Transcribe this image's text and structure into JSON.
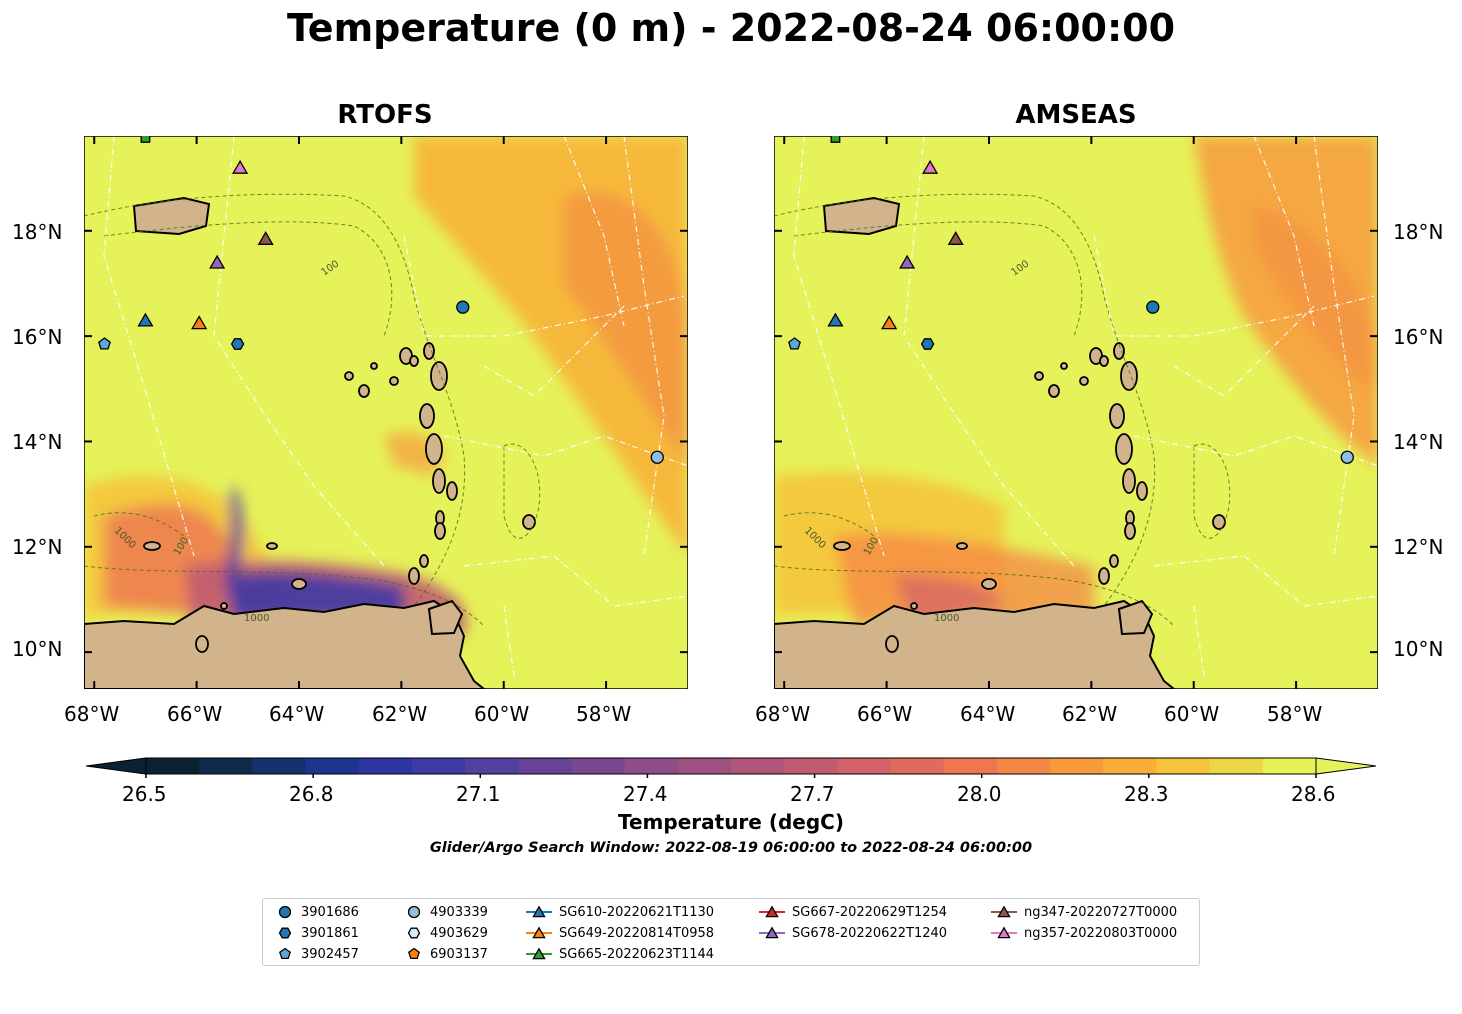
{
  "title": "Temperature (0 m) - 2022-08-24 06:00:00",
  "panels": [
    {
      "title": "RTOFS"
    },
    {
      "title": "AMSEAS"
    }
  ],
  "lon_ticks": [
    "68°W",
    "66°W",
    "64°W",
    "62°W",
    "60°W",
    "58°W"
  ],
  "lat_ticks": [
    "10°N",
    "12°N",
    "14°N",
    "16°N",
    "18°N"
  ],
  "map_extent": {
    "lon": [
      -68.2,
      -56.4
    ],
    "lat": [
      9.3,
      19.8
    ]
  },
  "colorbar": {
    "label": "Temperature (degC)",
    "ticks": [
      "26.5",
      "26.8",
      "27.1",
      "27.4",
      "27.7",
      "28.0",
      "28.3",
      "28.6"
    ],
    "range": [
      26.5,
      28.6
    ],
    "colors": [
      "#0b2233",
      "#0f2a4a",
      "#16306b",
      "#1f348c",
      "#2d36a0",
      "#3f3aa3",
      "#533f9e",
      "#664397",
      "#79488f",
      "#8c4d88",
      "#9e5181",
      "#b0567a",
      "#c15b72",
      "#d2616a",
      "#e06a5e",
      "#ec7752",
      "#f48746",
      "#f79a3c",
      "#f8ae37",
      "#f5c43c",
      "#ecd844",
      "#e6f25a"
    ]
  },
  "contour_labels": [
    "100",
    "1000",
    "100",
    "1000"
  ],
  "search_window": "Glider/Argo Search Window: 2022-08-19 06:00:00 to 2022-08-24 06:00:00",
  "legend": {
    "items": [
      {
        "label": "3901686",
        "marker": "circle",
        "color": "#1f77b4"
      },
      {
        "label": "3901861",
        "marker": "hexagon",
        "color": "#1f77b4"
      },
      {
        "label": "3902457",
        "marker": "pentagon",
        "color": "#5da5da"
      },
      {
        "label": "4903339",
        "marker": "circle",
        "color": "#8fbfe0"
      },
      {
        "label": "4903629",
        "marker": "hexagon",
        "color": "#d6ecf8"
      },
      {
        "label": "6903137",
        "marker": "pentagon",
        "color": "#ff7f0e"
      },
      {
        "label": "SG610-20220621T1130",
        "marker": "triangle-line",
        "color": "#1f77b4"
      },
      {
        "label": "SG649-20220814T0958",
        "marker": "triangle-line",
        "color": "#ff7f0e"
      },
      {
        "label": "SG665-20220623T1144",
        "marker": "triangle-line",
        "color": "#2ca02c"
      },
      {
        "label": "SG667-20220629T1254",
        "marker": "triangle-line",
        "color": "#d62728"
      },
      {
        "label": "SG678-20220622T1240",
        "marker": "triangle-line",
        "color": "#9467bd"
      },
      {
        "label": "ng347-20220727T0000",
        "marker": "triangle-line",
        "color": "#8c564b"
      },
      {
        "label": "ng357-20220803T0000",
        "marker": "triangle-line",
        "color": "#e377c2"
      }
    ]
  },
  "observations": [
    {
      "id": "3901686",
      "lon": -60.8,
      "lat": 16.55,
      "marker": "circle",
      "color": "#1f77b4"
    },
    {
      "id": "3901861",
      "lon": -65.2,
      "lat": 15.85,
      "marker": "hexagon",
      "color": "#1f77b4"
    },
    {
      "id": "3902457",
      "lon": -67.8,
      "lat": 15.85,
      "marker": "pentagon",
      "color": "#5da5da"
    },
    {
      "id": "4903339",
      "lon": -57.0,
      "lat": 13.7,
      "marker": "circle",
      "color": "#8fbfe0"
    },
    {
      "id": "SG610-20220621T1130",
      "lon": -67.0,
      "lat": 16.3,
      "marker": "triangle",
      "color": "#1f77b4"
    },
    {
      "id": "SG649-20220814T0958",
      "lon": -65.95,
      "lat": 16.25,
      "marker": "triangle",
      "color": "#ff7f0e"
    },
    {
      "id": "SG665-20220623T1144",
      "lon": -67.0,
      "lat": 19.85,
      "marker": "square",
      "color": "#2ca02c"
    },
    {
      "id": "SG678-20220622T1240",
      "lon": -65.6,
      "lat": 17.4,
      "marker": "triangle",
      "color": "#9467bd"
    },
    {
      "id": "ng347-20220727T0000",
      "lon": -64.65,
      "lat": 17.85,
      "marker": "triangle",
      "color": "#8c564b"
    },
    {
      "id": "ng357-20220803T0000",
      "lon": -65.15,
      "lat": 19.2,
      "marker": "triangle",
      "color": "#e377c2"
    }
  ]
}
